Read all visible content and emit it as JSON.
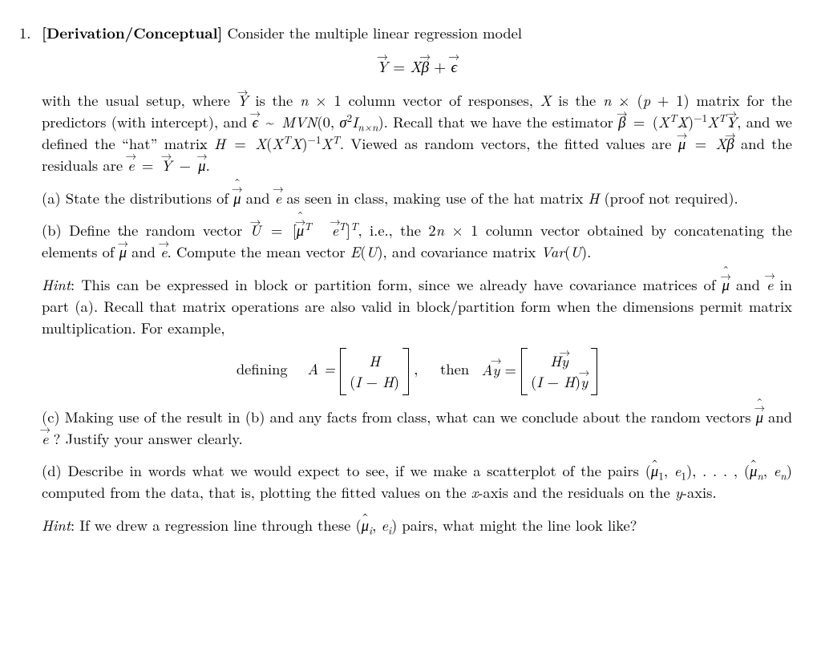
{
  "question_number": "1.",
  "tag": "[Derivation/Conceptual]",
  "intro_text": " Consider the multiple linear regression model",
  "setup_html": "with the usual setup, where <span class=\"vec ital\">Y</span> is the <span class=\"ital\">n</span> × 1 column vector of responses, <span class=\"ital\">X</span> is the <span class=\"ital\">n</span> × (<span class=\"ital\">p</span> + 1) matrix for the predictors (with intercept), and <span class=\"vec ital\">ϵ</span>&nbsp;~&nbsp;<span class=\"ital\">MVN</span>(0, <span class=\"ital\">σ</span><sup>2</sup><span class=\"ital\">I</span><sub><span class=\"ital\">n×n</span></sub>). Recall that we have the estimator <span class=\"hvec ital\">β</span>&nbsp;=&nbsp;(<span class=\"ital\">X</span><sup><span class=\"ital\">T</span></sup><span class=\"ital\">X</span>)<sup>−1</sup><span class=\"ital\">X</span><sup><span class=\"ital\">T</span></sup><span class=\"vec ital\">Y</span>, and we defined the “hat” matrix <span class=\"ital\">H</span>&nbsp;=&nbsp;<span class=\"ital\">X</span>(<span class=\"ital\">X</span><sup><span class=\"ital\">T</span></sup><span class=\"ital\">X</span>)<sup>−1</sup><span class=\"ital\">X</span><sup><span class=\"ital\">T</span></sup>. Viewed as random vectors, the fitted values are <span class=\"hvec ital\">μ</span>&nbsp;=&nbsp;<span class=\"ital\">X</span><span class=\"hvec ital\">β</span> and the residuals are <span class=\"vec ital\">e</span>&nbsp;=&nbsp;<span class=\"vec ital\">Y</span>&nbsp;−&nbsp;<span class=\"hvec ital\">μ</span>.",
  "part_a_html": "(a) State the distributions of <span class=\"hvec ital\">μ</span> and <span class=\"vec ital\">e</span> as seen in class, making use of the hat matrix <span class=\"ital\">H</span> (proof not required).",
  "part_b_html": "(b) Define the random vector <span class=\"vec ital\">U</span>&nbsp;=&nbsp;[<span class=\"hvec ital\">μ</span><sup><span class=\"ital\">T</span></sup>&nbsp;&nbsp;<span class=\"vec ital\">e</span><sup><span class=\"ital\">T</span></sup>]<sup><span class=\"ital\">T</span></sup>, i.e., the 2<span class=\"ital\">n</span> × 1 column vector obtained by concatenating the elements of <span class=\"hvec ital\">μ</span> and <span class=\"vec ital\">e</span>. Compute the mean vector <span class=\"ital\">E</span>(<span class=\"ital\">U</span>), and covariance matrix <span class=\"ital\">Var</span>(<span class=\"ital\">U</span>).",
  "hint_b_html": "<span class=\"ital\">Hint</span>: This can be expressed in block or partition form, since we already have covariance matrices of <span class=\"hvec ital\">μ</span> and <span class=\"vec ital\">e</span> in part (a). Recall that matrix operations are also valid in block/partition form when the dimensions permit matrix multiplication. For example,",
  "part_c_html": "(c) Making use of the result in (b) and any facts from class, what can we conclude about the random vectors <span class=\"hvec ital\">μ</span> and <span class=\"vec ital\">e</span> ? Justify your answer clearly.",
  "part_d_html": "(d) Describe in words what we would expect to see, if we make a scatterplot of the pairs (<span class=\"hat ital\">μ</span><sub>1</sub>, <span class=\"ital\">e</span><sub>1</sub>), . . . , (<span class=\"hat ital\">μ</span><sub><span class=\"ital\">n</span></sub>, <span class=\"ital\">e</span><sub><span class=\"ital\">n</span></sub>) computed from the data, that is, plotting the fitted values on the <span class=\"ital\">x</span>-axis and the residuals on the <span class=\"ital\">y</span>-axis.",
  "hint_d_html": "<span class=\"ital\">Hint</span>: If we drew a regression line through these (<span class=\"hat ital\">μ</span><sub><span class=\"ital\">i</span></sub>, <span class=\"ital\">e</span><sub><span class=\"ital\">i</span></sub>) pairs, what might the line look like?",
  "eq_model_html": "<span class=\"vec ital\">Y</span> = <span class=\"ital\">X</span><span class=\"vec ital\">β</span> + <span class=\"vec ital\">ϵ</span>",
  "defining_text": "defining&nbsp;&nbsp;",
  "then_text": ",&nbsp;&nbsp;&nbsp;then&nbsp;",
  "matrixA_row1_html": "<span class=\"ital\">H</span>",
  "matrixA_row2_html": "(<span class=\"ital\">I</span> − <span class=\"ital\">H</span>)",
  "matrixAy_row1_html": "<span class=\"ital\">H</span><span class=\"vec ital\">y</span>",
  "matrixAy_row2_html": "(<span class=\"ital\">I</span> − <span class=\"ital\">H</span>)<span class=\"vec ital\">y</span>",
  "A_eq": "A =",
  "Ay_eq_html": "<span class=\"ital\">A</span><span class=\"vec ital\">y</span> ="
}
